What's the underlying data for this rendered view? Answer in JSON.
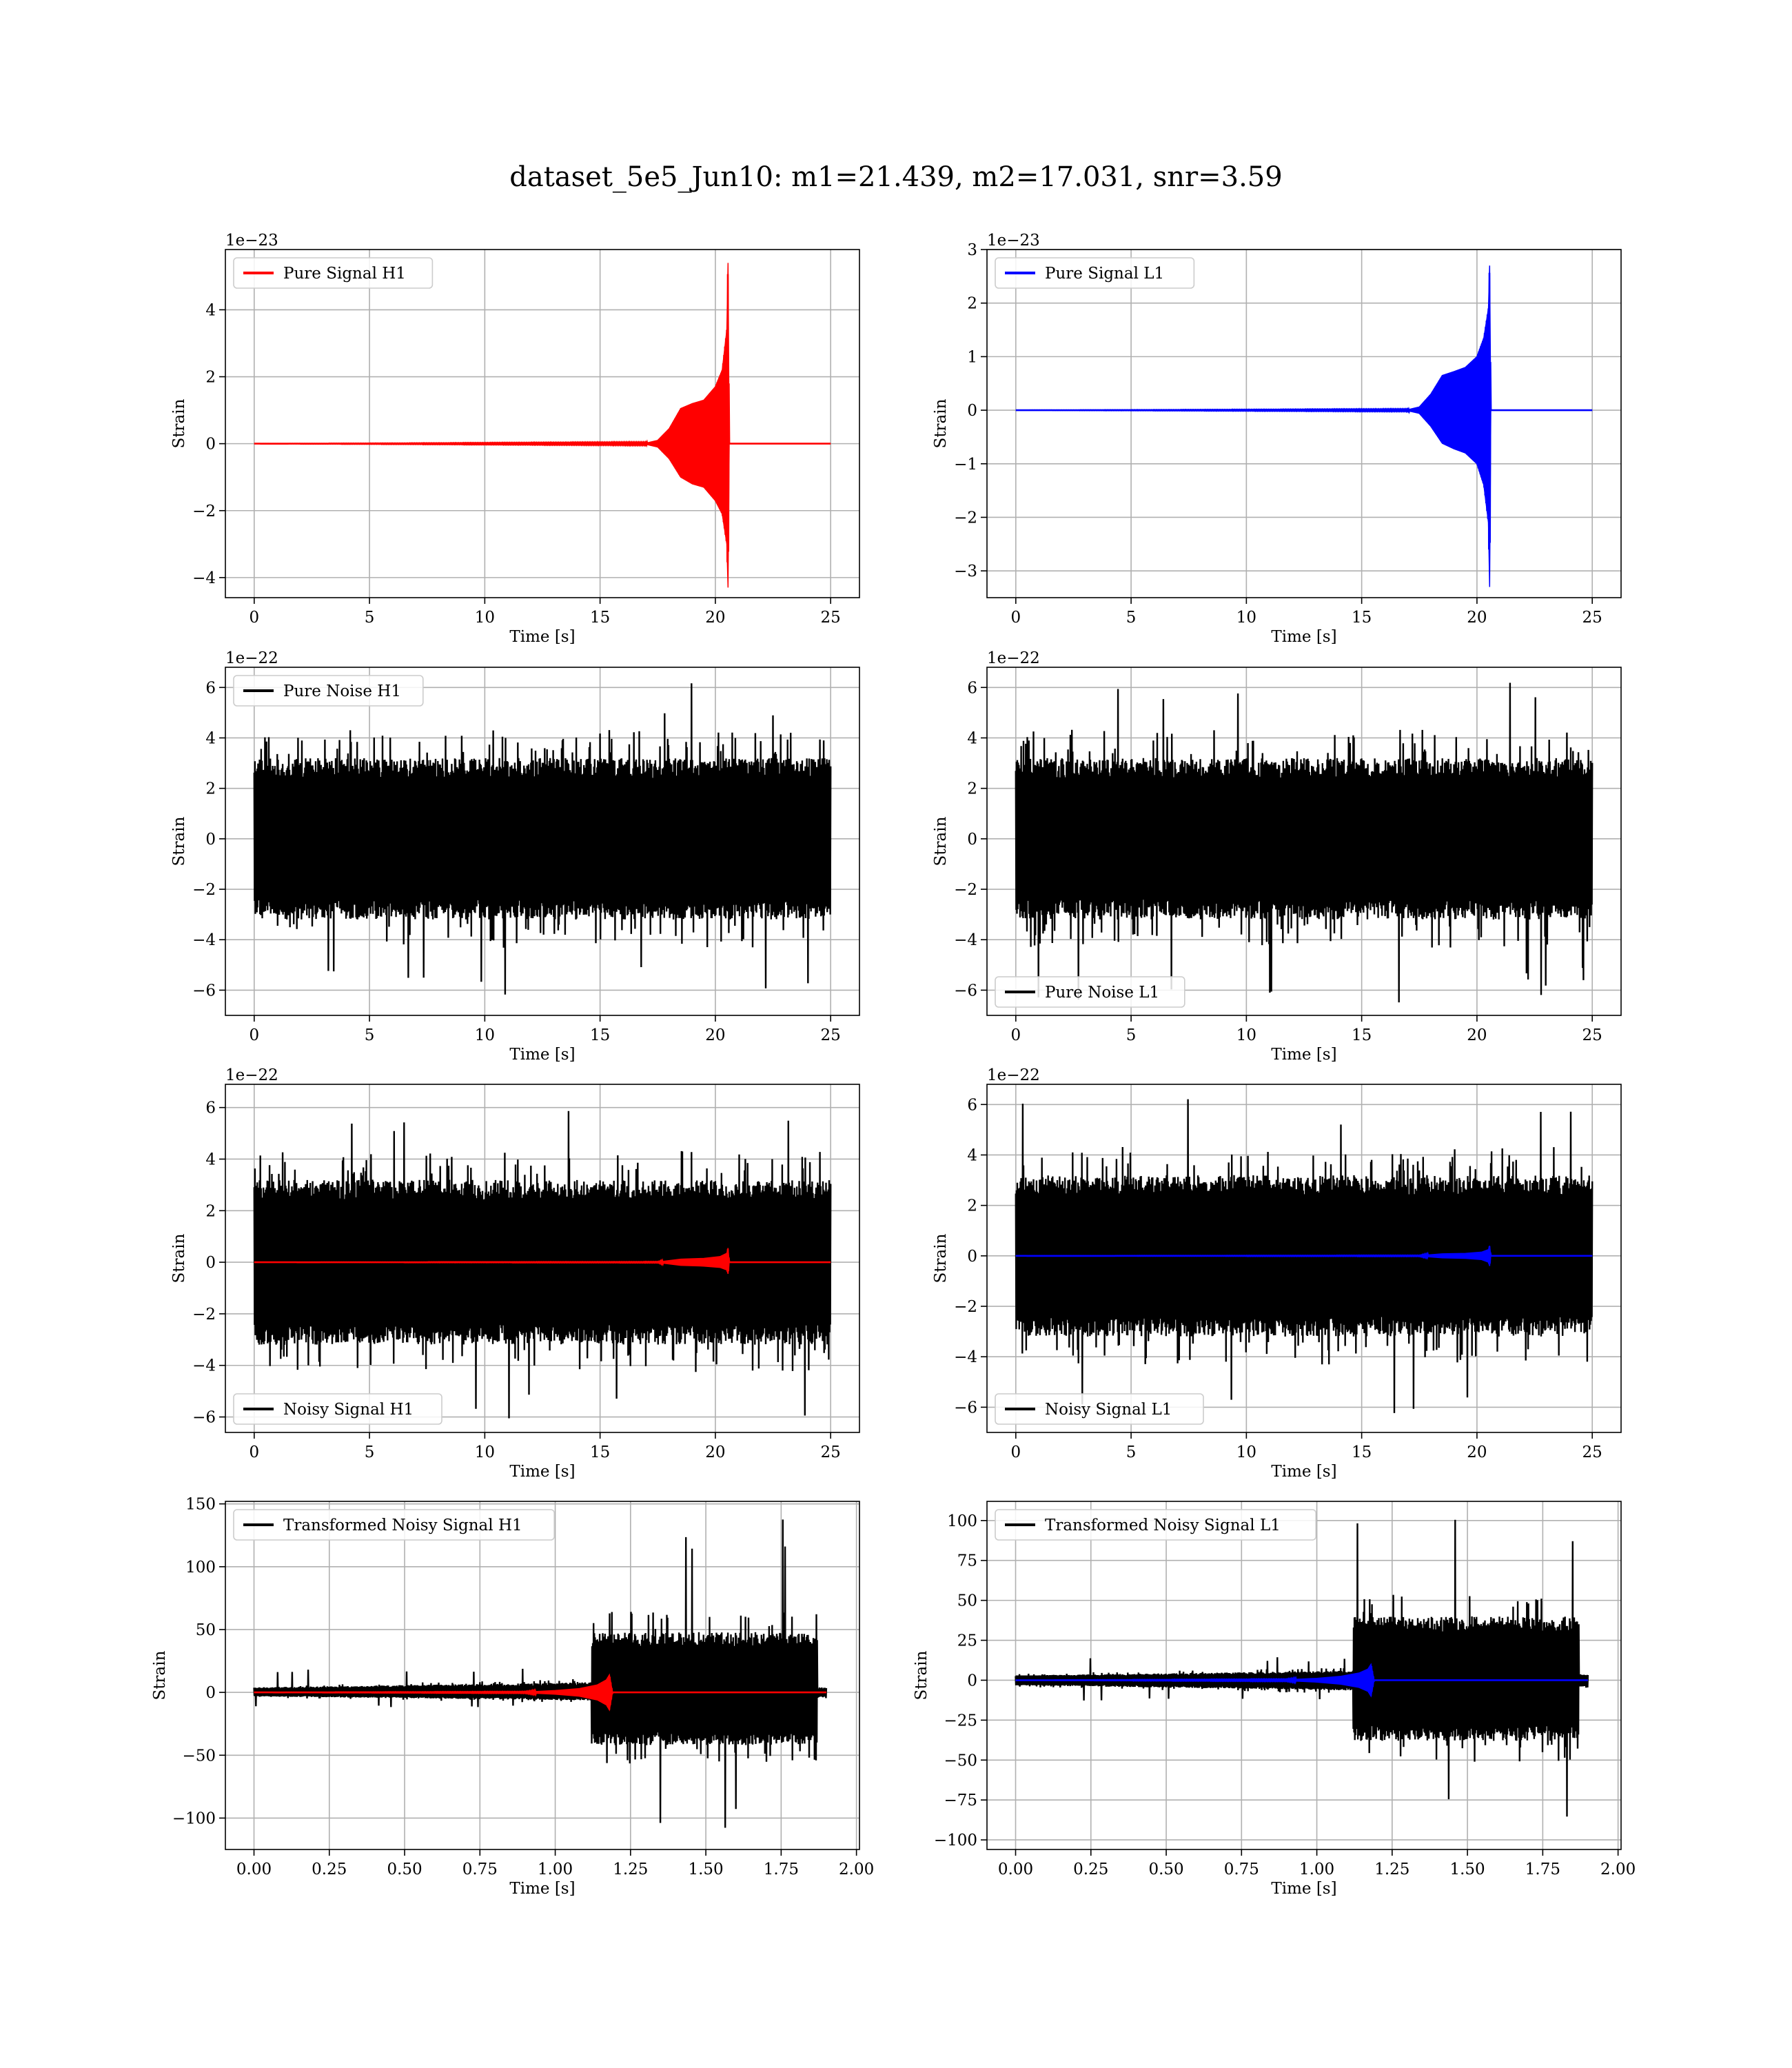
{
  "title": "dataset_5e5_Jun10: m1=21.439, m2=17.031, snr=3.59",
  "chart_data": [
    {
      "id": "pure-signal-h1",
      "type": "line",
      "xlabel": "Time [s]",
      "ylabel": "Strain",
      "offset_text": "1e−23",
      "xlim": [
        -1.25,
        26.25
      ],
      "ylim": [
        -4.6,
        5.8
      ],
      "xticks": [
        0,
        5,
        10,
        15,
        20,
        25
      ],
      "xtick_labels": [
        "0",
        "5",
        "10",
        "15",
        "20",
        "25"
      ],
      "yticks": [
        -4,
        -2,
        0,
        2,
        4
      ],
      "ytick_labels": [
        "−4",
        "−2",
        "0",
        "2",
        "4"
      ],
      "grid": true,
      "legend_position": "upper left",
      "series": [
        {
          "name": "Pure Signal H1",
          "color": "#ff0000",
          "kind": "chirp",
          "x": [
            0,
            17.0,
            17.5,
            18.0,
            18.5,
            19.0,
            19.5,
            20.0,
            20.3,
            20.5,
            20.55,
            20.6,
            25
          ],
          "upper": [
            0,
            0.02,
            0.1,
            0.45,
            1.05,
            1.2,
            1.3,
            1.7,
            2.2,
            3.4,
            5.4,
            0,
            0
          ],
          "lower": [
            0,
            -0.02,
            -0.1,
            -0.45,
            -1.0,
            -1.2,
            -1.3,
            -1.7,
            -2.1,
            -3.0,
            -4.3,
            0,
            0
          ]
        }
      ]
    },
    {
      "id": "pure-signal-l1",
      "type": "line",
      "xlabel": "Time [s]",
      "ylabel": "Strain",
      "offset_text": "1e−23",
      "xlim": [
        -1.25,
        26.25
      ],
      "ylim": [
        -3.5,
        3.0
      ],
      "xticks": [
        0,
        5,
        10,
        15,
        20,
        25
      ],
      "xtick_labels": [
        "0",
        "5",
        "10",
        "15",
        "20",
        "25"
      ],
      "yticks": [
        -3,
        -2,
        -1,
        0,
        1,
        2,
        3
      ],
      "ytick_labels": [
        "−3",
        "−2",
        "−1",
        "0",
        "1",
        "2",
        "3"
      ],
      "grid": true,
      "legend_position": "upper left",
      "series": [
        {
          "name": "Pure Signal L1",
          "color": "#0000ff",
          "kind": "chirp",
          "x": [
            0,
            17.0,
            17.5,
            18.0,
            18.5,
            19.0,
            19.5,
            20.0,
            20.3,
            20.5,
            20.55,
            20.6,
            25
          ],
          "upper": [
            0,
            0.01,
            0.06,
            0.3,
            0.65,
            0.72,
            0.8,
            1.0,
            1.35,
            1.9,
            2.7,
            0,
            0
          ],
          "lower": [
            0,
            -0.01,
            -0.06,
            -0.3,
            -0.62,
            -0.72,
            -0.8,
            -1.0,
            -1.4,
            -2.1,
            -3.3,
            0,
            0
          ]
        }
      ]
    },
    {
      "id": "pure-noise-h1",
      "type": "line",
      "xlabel": "Time [s]",
      "ylabel": "Strain",
      "offset_text": "1e−22",
      "xlim": [
        -1.25,
        26.25
      ],
      "ylim": [
        -7.0,
        6.8
      ],
      "xticks": [
        0,
        5,
        10,
        15,
        20,
        25
      ],
      "xtick_labels": [
        "0",
        "5",
        "10",
        "15",
        "20",
        "25"
      ],
      "yticks": [
        -6,
        -4,
        -2,
        0,
        2,
        4,
        6
      ],
      "ytick_labels": [
        "−6",
        "−4",
        "−2",
        "0",
        "2",
        "4",
        "6"
      ],
      "grid": true,
      "legend_position": "upper left",
      "series": [
        {
          "name": "Pure Noise H1",
          "color": "#000000",
          "kind": "noise",
          "x_range": [
            0,
            25
          ],
          "band": [
            -3.2,
            3.2
          ],
          "peak_max": 6.2,
          "peak_min": -6.4,
          "seed": 11
        }
      ]
    },
    {
      "id": "pure-noise-l1",
      "type": "line",
      "xlabel": "Time [s]",
      "ylabel": "Strain",
      "offset_text": "1e−22",
      "xlim": [
        -1.25,
        26.25
      ],
      "ylim": [
        -7.0,
        6.8
      ],
      "xticks": [
        0,
        5,
        10,
        15,
        20,
        25
      ],
      "xtick_labels": [
        "0",
        "5",
        "10",
        "15",
        "20",
        "25"
      ],
      "yticks": [
        -6,
        -4,
        -2,
        0,
        2,
        4,
        6
      ],
      "ytick_labels": [
        "−6",
        "−4",
        "−2",
        "0",
        "2",
        "4",
        "6"
      ],
      "grid": true,
      "legend_position": "lower left",
      "series": [
        {
          "name": "Pure Noise L1",
          "color": "#000000",
          "kind": "noise",
          "x_range": [
            0,
            25
          ],
          "band": [
            -3.2,
            3.2
          ],
          "peak_max": 6.4,
          "peak_min": -6.5,
          "seed": 23
        }
      ]
    },
    {
      "id": "noisy-signal-h1",
      "type": "line",
      "xlabel": "Time [s]",
      "ylabel": "Strain",
      "offset_text": "1e−22",
      "xlim": [
        -1.25,
        26.25
      ],
      "ylim": [
        -6.6,
        6.9
      ],
      "xticks": [
        0,
        5,
        10,
        15,
        20,
        25
      ],
      "xtick_labels": [
        "0",
        "5",
        "10",
        "15",
        "20",
        "25"
      ],
      "yticks": [
        -6,
        -4,
        -2,
        0,
        2,
        4,
        6
      ],
      "ytick_labels": [
        "−6",
        "−4",
        "−2",
        "0",
        "2",
        "4",
        "6"
      ],
      "grid": true,
      "legend_position": "lower left",
      "series": [
        {
          "name": "Noisy Signal H1",
          "color": "#000000",
          "kind": "noise",
          "x_range": [
            0,
            25
          ],
          "band": [
            -3.2,
            3.2
          ],
          "peak_max": 6.2,
          "peak_min": -6.3,
          "seed": 37
        },
        {
          "name": "",
          "color": "#ff0000",
          "kind": "chirp",
          "x": [
            0,
            17.5,
            18.5,
            19.5,
            20.2,
            20.5,
            20.55,
            20.6,
            25
          ],
          "upper": [
            0,
            0.01,
            0.12,
            0.15,
            0.22,
            0.35,
            0.55,
            0,
            0
          ],
          "lower": [
            0,
            -0.01,
            -0.12,
            -0.15,
            -0.2,
            -0.3,
            -0.45,
            0,
            0
          ]
        }
      ]
    },
    {
      "id": "noisy-signal-l1",
      "type": "line",
      "xlabel": "Time [s]",
      "ylabel": "Strain",
      "offset_text": "1e−22",
      "xlim": [
        -1.25,
        26.25
      ],
      "ylim": [
        -7.0,
        6.8
      ],
      "xticks": [
        0,
        5,
        10,
        15,
        20,
        25
      ],
      "xtick_labels": [
        "0",
        "5",
        "10",
        "15",
        "20",
        "25"
      ],
      "yticks": [
        -6,
        -4,
        -2,
        0,
        2,
        4,
        6
      ],
      "ytick_labels": [
        "−6",
        "−4",
        "−2",
        "0",
        "2",
        "4",
        "6"
      ],
      "grid": true,
      "legend_position": "lower left",
      "series": [
        {
          "name": "Noisy Signal L1",
          "color": "#000000",
          "kind": "noise",
          "x_range": [
            0,
            25
          ],
          "band": [
            -3.2,
            3.2
          ],
          "peak_max": 6.4,
          "peak_min": -6.5,
          "seed": 53
        },
        {
          "name": "",
          "color": "#0000ff",
          "kind": "chirp",
          "x": [
            0,
            17.5,
            18.5,
            19.5,
            20.2,
            20.5,
            20.55,
            20.6,
            25
          ],
          "upper": [
            0,
            0.01,
            0.08,
            0.1,
            0.15,
            0.25,
            0.4,
            0,
            0
          ],
          "lower": [
            0,
            -0.01,
            -0.08,
            -0.1,
            -0.15,
            -0.25,
            -0.4,
            0,
            0
          ]
        }
      ]
    },
    {
      "id": "transformed-noisy-signal-h1",
      "type": "line",
      "xlabel": "Time [s]",
      "ylabel": "Strain",
      "offset_text": "",
      "xlim": [
        -0.095,
        2.01
      ],
      "ylim": [
        -125,
        152
      ],
      "xticks": [
        0,
        0.25,
        0.5,
        0.75,
        1.0,
        1.25,
        1.5,
        1.75,
        2.0
      ],
      "xtick_labels": [
        "0.00",
        "0.25",
        "0.50",
        "0.75",
        "1.00",
        "1.25",
        "1.50",
        "1.75",
        "2.00"
      ],
      "yticks": [
        -100,
        -50,
        0,
        50,
        100,
        150
      ],
      "ytick_labels": [
        "−100",
        "−50",
        "0",
        "50",
        "100",
        "150"
      ],
      "grid": true,
      "legend_position": "upper left",
      "series": [
        {
          "name": "Transformed Noisy Signal H1",
          "color": "#000000",
          "kind": "transformed",
          "x_range": [
            0,
            1.9
          ],
          "jump_at": 1.12,
          "end_at": 1.87,
          "pre_band": [
            -4,
            8
          ],
          "post_band": [
            -42,
            48
          ],
          "peak_max": 139,
          "peak_min": -112,
          "seed": 71
        },
        {
          "name": "",
          "color": "#ff0000",
          "kind": "chirp",
          "x": [
            0,
            0.9,
            1.0,
            1.08,
            1.14,
            1.17,
            1.18,
            1.19,
            1.9
          ],
          "upper": [
            0,
            0.3,
            1.5,
            3.0,
            6.0,
            10,
            14,
            0,
            0
          ],
          "lower": [
            0,
            -0.3,
            -1.5,
            -3.0,
            -6.0,
            -10,
            -14,
            0,
            0
          ]
        }
      ]
    },
    {
      "id": "transformed-noisy-signal-l1",
      "type": "line",
      "xlabel": "Time [s]",
      "ylabel": "Strain",
      "offset_text": "",
      "xlim": [
        -0.095,
        2.01
      ],
      "ylim": [
        -106,
        112
      ],
      "xticks": [
        0,
        0.25,
        0.5,
        0.75,
        1.0,
        1.25,
        1.5,
        1.75,
        2.0
      ],
      "xtick_labels": [
        "0.00",
        "0.25",
        "0.50",
        "0.75",
        "1.00",
        "1.25",
        "1.50",
        "1.75",
        "2.00"
      ],
      "yticks": [
        -100,
        -75,
        -50,
        -25,
        0,
        25,
        50,
        75,
        100
      ],
      "ytick_labels": [
        "−100",
        "−75",
        "−50",
        "−25",
        "0",
        "25",
        "50",
        "75",
        "100"
      ],
      "grid": true,
      "legend_position": "upper left",
      "series": [
        {
          "name": "Transformed Noisy Signal L1",
          "color": "#000000",
          "kind": "transformed",
          "x_range": [
            0,
            1.9
          ],
          "jump_at": 1.12,
          "end_at": 1.87,
          "pre_band": [
            -4,
            6
          ],
          "post_band": [
            -38,
            40
          ],
          "peak_max": 103,
          "peak_min": -94,
          "seed": 89
        },
        {
          "name": "",
          "color": "#0000ff",
          "kind": "chirp",
          "x": [
            0,
            0.9,
            1.0,
            1.08,
            1.14,
            1.17,
            1.18,
            1.19,
            1.9
          ],
          "upper": [
            0,
            0.3,
            1.2,
            2.5,
            4.5,
            7,
            10,
            0,
            0
          ],
          "lower": [
            0,
            -0.3,
            -1.2,
            -2.5,
            -4.5,
            -7,
            -10,
            0,
            0
          ]
        }
      ]
    }
  ]
}
